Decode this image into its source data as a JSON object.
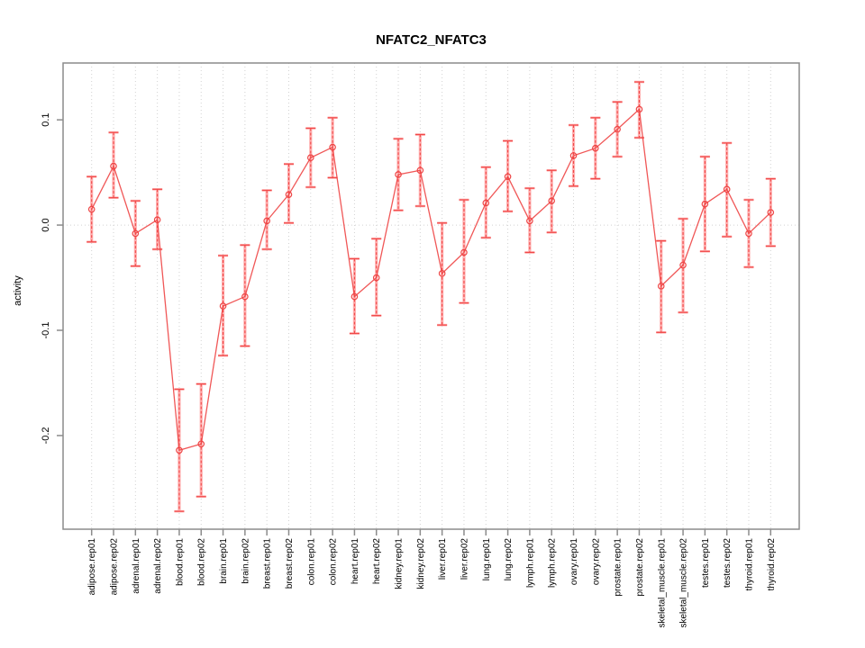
{
  "title": "NFATC2_NFATC3",
  "chart_data": {
    "type": "line",
    "title": "NFATC2_NFATC3",
    "xlabel": "",
    "ylabel": "activity",
    "legend": "none",
    "grid": {
      "vertical_dotted_per_category": true,
      "horizontal_dotted_at_zero": true
    },
    "ylim": [
      -0.289,
      0.154
    ],
    "yticks": {
      "values": [
        0.1,
        0.0,
        -0.1,
        -0.2
      ],
      "labels": [
        "0.1",
        "0.0",
        "-0.1",
        "-0.2"
      ]
    },
    "marker": "open-circle",
    "colors": {
      "line": "#ee4545",
      "marker": "#ee4545",
      "errorbar_core": "#f04848",
      "errorbar_halo": "#ffb0b0",
      "gridline": "#d2d2d2",
      "box": "#8c8c8c",
      "text": "#000000"
    },
    "series_name": "activity",
    "points": [
      {
        "label": "adipose.rep01",
        "value": 0.015,
        "lower": -0.016,
        "upper": 0.046
      },
      {
        "label": "adipose.rep02",
        "value": 0.056,
        "lower": 0.026,
        "upper": 0.088
      },
      {
        "label": "adrenal.rep01",
        "value": -0.008,
        "lower": -0.039,
        "upper": 0.023
      },
      {
        "label": "adrenal.rep02",
        "value": 0.005,
        "lower": -0.023,
        "upper": 0.034
      },
      {
        "label": "blood.rep01",
        "value": -0.214,
        "lower": -0.272,
        "upper": -0.156
      },
      {
        "label": "blood.rep02",
        "value": -0.208,
        "lower": -0.258,
        "upper": -0.151
      },
      {
        "label": "brain.rep01",
        "value": -0.077,
        "lower": -0.124,
        "upper": -0.029
      },
      {
        "label": "brain.rep02",
        "value": -0.068,
        "lower": -0.115,
        "upper": -0.019
      },
      {
        "label": "breast.rep01",
        "value": 0.004,
        "lower": -0.023,
        "upper": 0.033
      },
      {
        "label": "breast.rep02",
        "value": 0.029,
        "lower": 0.002,
        "upper": 0.058
      },
      {
        "label": "colon.rep01",
        "value": 0.064,
        "lower": 0.036,
        "upper": 0.092
      },
      {
        "label": "colon.rep02",
        "value": 0.074,
        "lower": 0.045,
        "upper": 0.102
      },
      {
        "label": "heart.rep01",
        "value": -0.068,
        "lower": -0.103,
        "upper": -0.032
      },
      {
        "label": "heart.rep02",
        "value": -0.05,
        "lower": -0.086,
        "upper": -0.013
      },
      {
        "label": "kidney.rep01",
        "value": 0.048,
        "lower": 0.014,
        "upper": 0.082
      },
      {
        "label": "kidney.rep02",
        "value": 0.052,
        "lower": 0.018,
        "upper": 0.086
      },
      {
        "label": "liver.rep01",
        "value": -0.046,
        "lower": -0.095,
        "upper": 0.002
      },
      {
        "label": "liver.rep02",
        "value": -0.026,
        "lower": -0.074,
        "upper": 0.024
      },
      {
        "label": "lung.rep01",
        "value": 0.021,
        "lower": -0.012,
        "upper": 0.055
      },
      {
        "label": "lung.rep02",
        "value": 0.046,
        "lower": 0.013,
        "upper": 0.08
      },
      {
        "label": "lymph.rep01",
        "value": 0.004,
        "lower": -0.026,
        "upper": 0.035
      },
      {
        "label": "lymph.rep02",
        "value": 0.023,
        "lower": -0.007,
        "upper": 0.052
      },
      {
        "label": "ovary.rep01",
        "value": 0.066,
        "lower": 0.037,
        "upper": 0.095
      },
      {
        "label": "ovary.rep02",
        "value": 0.073,
        "lower": 0.044,
        "upper": 0.102
      },
      {
        "label": "prostate.rep01",
        "value": 0.091,
        "lower": 0.065,
        "upper": 0.117
      },
      {
        "label": "prostate.rep02",
        "value": 0.11,
        "lower": 0.083,
        "upper": 0.136
      },
      {
        "label": "skeletal_muscle.rep01",
        "value": -0.058,
        "lower": -0.102,
        "upper": -0.015
      },
      {
        "label": "skeletal_muscle.rep02",
        "value": -0.038,
        "lower": -0.083,
        "upper": 0.006
      },
      {
        "label": "testes.rep01",
        "value": 0.02,
        "lower": -0.025,
        "upper": 0.065
      },
      {
        "label": "testes.rep02",
        "value": 0.034,
        "lower": -0.011,
        "upper": 0.078
      },
      {
        "label": "thyroid.rep01",
        "value": -0.008,
        "lower": -0.04,
        "upper": 0.024
      },
      {
        "label": "thyroid.rep02",
        "value": 0.012,
        "lower": -0.02,
        "upper": 0.044
      }
    ]
  }
}
